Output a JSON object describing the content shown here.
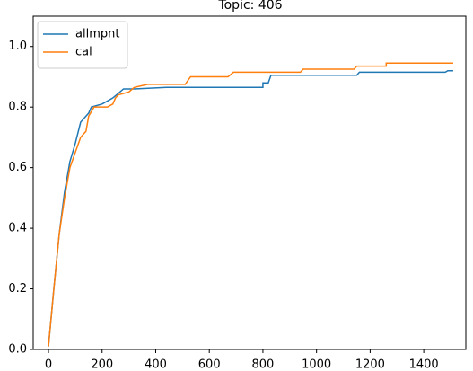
{
  "chart_data": {
    "type": "line",
    "title": "Topic: 406",
    "xlim": [
      -57,
      1557
    ],
    "ylim": [
      0,
      1.1
    ],
    "xticks": [
      0,
      200,
      400,
      600,
      800,
      1000,
      1200,
      1400
    ],
    "yticks": [
      {
        "value": 0,
        "label": "0.0"
      },
      {
        "value": 0.2,
        "label": "0.2"
      },
      {
        "value": 0.4,
        "label": "0.4"
      },
      {
        "value": 0.6,
        "label": "0.6"
      },
      {
        "value": 0.8,
        "label": "0.8"
      },
      {
        "value": 1.0,
        "label": "1.0"
      }
    ],
    "legend": "upper left",
    "series": [
      {
        "name": "allmpnt",
        "color": "#1f77b4",
        "x": [
          0,
          20,
          40,
          60,
          80,
          100,
          120,
          140,
          150,
          160,
          200,
          220,
          240,
          280,
          320,
          440,
          800,
          800,
          820,
          830,
          1150,
          1160,
          1480,
          1490,
          1510
        ],
        "values": [
          0.01,
          0.2,
          0.38,
          0.52,
          0.62,
          0.68,
          0.75,
          0.77,
          0.78,
          0.8,
          0.81,
          0.82,
          0.83,
          0.86,
          0.86,
          0.865,
          0.865,
          0.88,
          0.88,
          0.905,
          0.905,
          0.915,
          0.915,
          0.92,
          0.92
        ]
      },
      {
        "name": "cal",
        "color": "#ff7f0e",
        "x": [
          0,
          20,
          40,
          60,
          80,
          100,
          120,
          140,
          150,
          170,
          220,
          240,
          250,
          260,
          300,
          320,
          370,
          510,
          530,
          670,
          690,
          940,
          950,
          1140,
          1150,
          1260,
          1260,
          1510
        ],
        "values": [
          0.01,
          0.2,
          0.38,
          0.5,
          0.6,
          0.65,
          0.7,
          0.72,
          0.77,
          0.8,
          0.8,
          0.81,
          0.83,
          0.84,
          0.85,
          0.865,
          0.875,
          0.875,
          0.9,
          0.9,
          0.915,
          0.915,
          0.925,
          0.925,
          0.935,
          0.935,
          0.945,
          0.945
        ]
      }
    ]
  }
}
